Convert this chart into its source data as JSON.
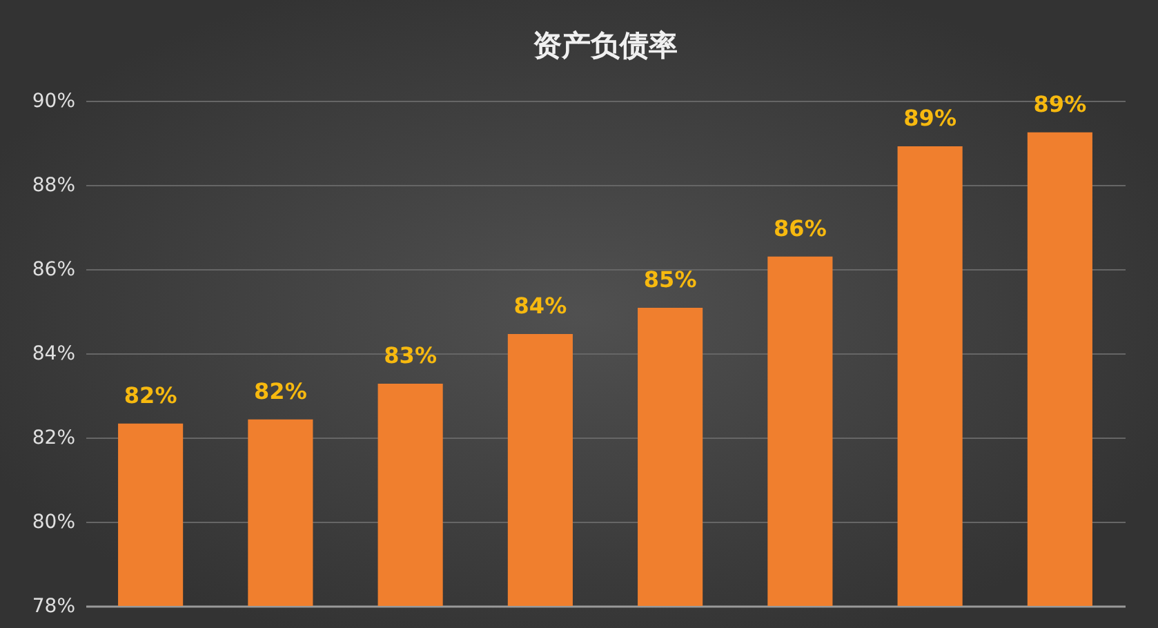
{
  "chart_data": {
    "type": "bar",
    "title": "资产负债率",
    "categories": [
      null,
      null,
      null,
      null,
      null,
      null,
      null,
      null
    ],
    "values": [
      82.33,
      82.43,
      83.28,
      84.46,
      85.08,
      86.3,
      88.92,
      89.25
    ],
    "value_labels": [
      "82%",
      "82%",
      "83%",
      "84%",
      "85%",
      "86%",
      "89%",
      "89%"
    ],
    "color": "#f07f2e",
    "ylim": [
      78,
      90
    ],
    "yticks": [
      {
        "value": 78,
        "label": "78%"
      },
      {
        "value": 80,
        "label": "80%"
      },
      {
        "value": 82,
        "label": "82%"
      },
      {
        "value": 84,
        "label": "84%"
      },
      {
        "value": 86,
        "label": "86%"
      },
      {
        "value": 88,
        "label": "88%"
      },
      {
        "value": 90,
        "label": "90%"
      }
    ],
    "grid": "y",
    "tick_labels": "y"
  }
}
